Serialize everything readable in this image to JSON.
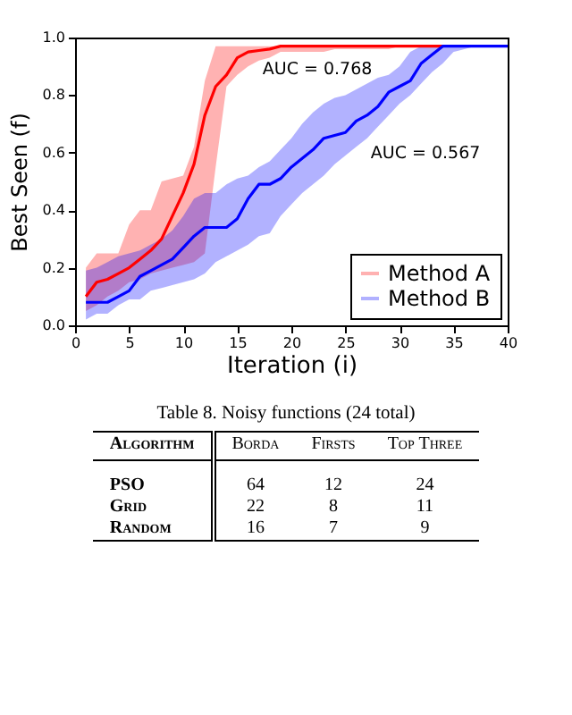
{
  "chart_data": [
    {
      "type": "line",
      "xlabel": "Iteration (i)",
      "ylabel": "Best Seen (f)",
      "x": [
        1,
        2,
        3,
        4,
        5,
        6,
        7,
        8,
        9,
        10,
        11,
        12,
        13,
        14,
        15,
        16,
        17,
        18,
        19,
        20,
        21,
        22,
        23,
        24,
        25,
        26,
        27,
        28,
        29,
        30,
        31,
        32,
        33,
        34,
        35,
        36,
        37,
        38,
        39,
        40
      ],
      "series": [
        {
          "name": "Method A",
          "color": "#ff0000",
          "values": [
            0.1,
            0.15,
            0.16,
            0.18,
            0.2,
            0.23,
            0.26,
            0.3,
            0.38,
            0.46,
            0.56,
            0.73,
            0.83,
            0.87,
            0.93,
            0.95,
            0.955,
            0.96,
            0.97,
            0.97,
            0.97,
            0.97,
            0.97,
            0.97,
            0.97,
            0.97,
            0.97,
            0.97,
            0.97,
            0.97,
            0.97,
            0.97,
            0.97,
            0.97,
            null,
            null,
            null,
            null,
            null,
            null
          ],
          "lower": [
            0.05,
            0.07,
            0.1,
            0.12,
            0.15,
            0.16,
            0.18,
            0.19,
            0.2,
            0.21,
            0.22,
            0.25,
            0.55,
            0.83,
            0.87,
            0.9,
            0.92,
            0.93,
            0.95,
            0.95,
            0.95,
            0.95,
            0.95,
            0.96,
            0.96,
            0.96,
            0.96,
            0.96,
            0.96,
            0.97,
            0.97,
            0.97,
            0.97,
            0.97,
            0.97,
            0.97,
            0.97,
            0.97,
            0.97,
            0.97
          ],
          "upper": [
            0.2,
            0.25,
            0.25,
            0.25,
            0.35,
            0.4,
            0.4,
            0.5,
            0.51,
            0.52,
            0.62,
            0.85,
            0.97,
            0.97,
            0.97,
            0.97,
            0.97,
            0.97,
            0.97,
            0.97,
            0.97,
            0.97,
            0.97,
            0.97,
            0.97,
            0.97,
            0.97,
            0.97,
            0.97,
            0.97,
            0.97,
            0.97,
            0.97,
            0.97,
            0.97,
            0.97,
            0.97,
            0.97,
            0.97,
            0.97
          ]
        },
        {
          "name": "Method B",
          "color": "#0000ff",
          "values": [
            0.08,
            0.08,
            0.08,
            0.1,
            0.12,
            0.17,
            0.19,
            0.21,
            0.23,
            0.27,
            0.31,
            0.34,
            0.34,
            0.34,
            0.37,
            0.44,
            0.49,
            0.49,
            0.51,
            0.55,
            0.58,
            0.61,
            0.65,
            0.66,
            0.67,
            0.71,
            0.73,
            0.76,
            0.81,
            0.83,
            0.85,
            0.91,
            0.94,
            0.97,
            0.97,
            0.97,
            0.97,
            0.97,
            0.97,
            0.97
          ],
          "lower": [
            0.02,
            0.04,
            0.04,
            0.07,
            0.09,
            0.09,
            0.12,
            0.13,
            0.14,
            0.15,
            0.16,
            0.18,
            0.22,
            0.24,
            0.26,
            0.28,
            0.31,
            0.32,
            0.38,
            0.42,
            0.46,
            0.49,
            0.52,
            0.56,
            0.59,
            0.62,
            0.65,
            0.69,
            0.73,
            0.77,
            0.8,
            0.84,
            0.88,
            0.91,
            0.95,
            0.96,
            0.97,
            0.97,
            0.97,
            0.97
          ],
          "upper": [
            0.19,
            0.2,
            0.22,
            0.24,
            0.25,
            0.26,
            0.28,
            0.3,
            0.33,
            0.38,
            0.44,
            0.46,
            0.46,
            0.49,
            0.51,
            0.52,
            0.55,
            0.57,
            0.61,
            0.65,
            0.7,
            0.74,
            0.77,
            0.79,
            0.8,
            0.82,
            0.84,
            0.86,
            0.87,
            0.9,
            0.95,
            0.97,
            0.97,
            0.97,
            0.97,
            0.97,
            0.97,
            0.97,
            0.97,
            0.97
          ]
        }
      ],
      "annotations": [
        "AUC = 0.768",
        "AUC = 0.567"
      ],
      "xlim": [
        0,
        40
      ],
      "xticks": [
        0,
        5,
        10,
        15,
        20,
        25,
        30,
        35,
        40
      ],
      "ylim": [
        0,
        1
      ],
      "yticks": [
        {
          "value": 0,
          "label": "0.0"
        },
        {
          "value": 0.2,
          "label": "0.2"
        },
        {
          "value": 0.4,
          "label": "0.4"
        },
        {
          "value": 0.6,
          "label": "0.6"
        },
        {
          "value": 0.8,
          "label": "0.8"
        },
        {
          "value": 1,
          "label": "1.0"
        }
      ],
      "legend": "bottom right",
      "grid": false
    },
    {
      "type": "other",
      "title": "Table 8. Noisy functions (24 total)",
      "xlabel": "Algorithm",
      "categories": [
        "PSO",
        "Grid",
        "Random"
      ],
      "series": [
        {
          "name": "Borda",
          "values": [
            64,
            22,
            16
          ]
        },
        {
          "name": "Firsts",
          "values": [
            12,
            8,
            7
          ]
        },
        {
          "name": "Top Three",
          "values": [
            24,
            11,
            9
          ]
        }
      ],
      "data_labels": true
    }
  ]
}
